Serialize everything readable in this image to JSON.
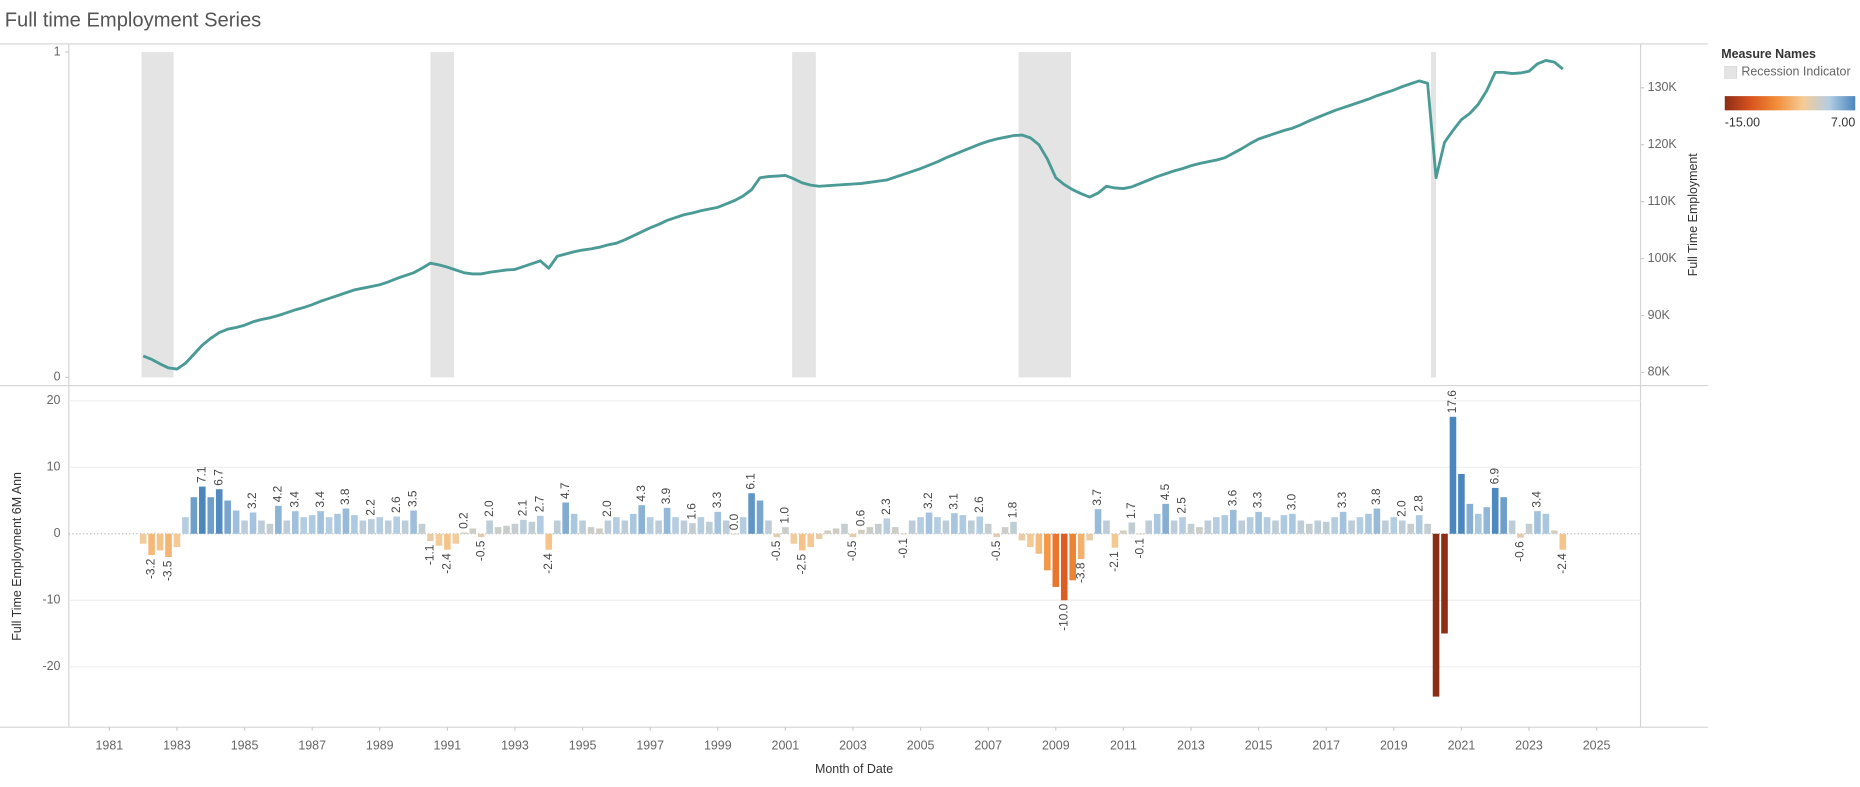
{
  "chart_data": [
    {
      "type": "line",
      "title": "Full time Employment Series",
      "y2label": "Full Time Employment",
      "legend_title": "Measure Names",
      "xlim": [
        1979.8,
        2026.3
      ],
      "ylim": [
        -0.025,
        1.025
      ],
      "yticks": [
        0,
        1
      ],
      "y2lim": [
        77.7,
        137.7
      ],
      "y2ticks": [
        {
          "value": 80,
          "label": "80K"
        },
        {
          "value": 90,
          "label": "90K"
        },
        {
          "value": 100,
          "label": "100K"
        },
        {
          "value": 110,
          "label": "110K"
        },
        {
          "value": 120,
          "label": "120K"
        },
        {
          "value": 130,
          "label": "130K"
        }
      ],
      "recessions": {
        "name": "Recession Indicator",
        "color": "#e4e4e4",
        "starts": [
          1981.95,
          1990.5,
          2001.2,
          2007.9,
          2020.1
        ],
        "ends": [
          1982.9,
          1991.2,
          2001.9,
          2009.45,
          2020.25
        ],
        "values": [
          1,
          1,
          1,
          1,
          1
        ]
      },
      "x": [
        1982,
        1982.25,
        1982.5,
        1982.75,
        1983,
        1983.25,
        1983.5,
        1983.75,
        1984,
        1984.25,
        1984.5,
        1984.75,
        1985,
        1985.25,
        1985.5,
        1985.75,
        1986,
        1986.25,
        1986.5,
        1986.75,
        1987,
        1987.25,
        1987.5,
        1987.75,
        1988,
        1988.25,
        1988.5,
        1988.75,
        1989,
        1989.25,
        1989.5,
        1989.75,
        1990,
        1990.25,
        1990.5,
        1990.75,
        1991,
        1991.25,
        1991.5,
        1991.75,
        1992,
        1992.25,
        1992.5,
        1992.75,
        1993,
        1993.25,
        1993.5,
        1993.75,
        1994,
        1994.25,
        1994.5,
        1994.75,
        1995,
        1995.25,
        1995.5,
        1995.75,
        1996,
        1996.25,
        1996.5,
        1996.75,
        1997,
        1997.25,
        1997.5,
        1997.75,
        1998,
        1998.25,
        1998.5,
        1998.75,
        1999,
        1999.25,
        1999.5,
        1999.75,
        2000,
        2000.25,
        2000.5,
        2000.75,
        2001,
        2001.25,
        2001.5,
        2001.75,
        2002,
        2002.25,
        2002.5,
        2002.75,
        2003,
        2003.25,
        2003.5,
        2003.75,
        2004,
        2004.25,
        2004.5,
        2004.75,
        2005,
        2005.25,
        2005.5,
        2005.75,
        2006,
        2006.25,
        2006.5,
        2006.75,
        2007,
        2007.25,
        2007.5,
        2007.75,
        2008,
        2008.25,
        2008.5,
        2008.75,
        2009,
        2009.25,
        2009.5,
        2009.75,
        2010,
        2010.25,
        2010.5,
        2010.75,
        2011,
        2011.25,
        2011.5,
        2011.75,
        2012,
        2012.25,
        2012.5,
        2012.75,
        2013,
        2013.25,
        2013.5,
        2013.75,
        2014,
        2014.25,
        2014.5,
        2014.75,
        2015,
        2015.25,
        2015.5,
        2015.75,
        2016,
        2016.25,
        2016.5,
        2016.75,
        2017,
        2017.25,
        2017.5,
        2017.75,
        2018,
        2018.25,
        2018.5,
        2018.75,
        2019,
        2019.25,
        2019.5,
        2019.75,
        2020,
        2020.25,
        2020.5,
        2020.75,
        2021,
        2021.25,
        2021.5,
        2021.75,
        2022,
        2022.25,
        2022.5,
        2022.75,
        2023,
        2023.25,
        2023.5,
        2023.75,
        2024
      ],
      "series": [
        {
          "axis": "y2",
          "color": "#4a9a96",
          "values": [
            82.9,
            82.3,
            81.5,
            80.8,
            80.6,
            81.6,
            83.2,
            84.8,
            86.0,
            87.0,
            87.6,
            87.9,
            88.3,
            88.9,
            89.3,
            89.6,
            90.0,
            90.5,
            91.0,
            91.4,
            91.9,
            92.5,
            93.0,
            93.5,
            94.0,
            94.5,
            94.8,
            95.1,
            95.4,
            95.9,
            96.5,
            97.0,
            97.5,
            98.3,
            99.2,
            98.9,
            98.5,
            98.0,
            97.5,
            97.3,
            97.3,
            97.6,
            97.8,
            98.0,
            98.1,
            98.6,
            99.1,
            99.6,
            98.3,
            100.4,
            100.8,
            101.2,
            101.5,
            101.7,
            102.0,
            102.4,
            102.7,
            103.3,
            104.0,
            104.7,
            105.4,
            106.0,
            106.7,
            107.2,
            107.7,
            108.0,
            108.4,
            108.7,
            109.0,
            109.6,
            110.2,
            111.0,
            112.1,
            114.2,
            114.4,
            114.5,
            114.6,
            114.0,
            113.3,
            112.9,
            112.7,
            112.8,
            112.9,
            113.0,
            113.1,
            113.2,
            113.4,
            113.6,
            113.8,
            114.3,
            114.8,
            115.3,
            115.8,
            116.4,
            117.0,
            117.7,
            118.3,
            118.9,
            119.5,
            120.1,
            120.6,
            121.0,
            121.3,
            121.6,
            121.7,
            121.2,
            120.0,
            117.5,
            114.2,
            113.0,
            112.1,
            111.4,
            110.8,
            111.5,
            112.7,
            112.4,
            112.3,
            112.6,
            113.2,
            113.8,
            114.4,
            114.9,
            115.4,
            115.8,
            116.3,
            116.7,
            117.0,
            117.3,
            117.7,
            118.5,
            119.3,
            120.2,
            121.0,
            121.5,
            122.0,
            122.5,
            122.9,
            123.5,
            124.2,
            124.8,
            125.4,
            126.0,
            126.5,
            127.0,
            127.5,
            128.0,
            128.6,
            129.1,
            129.6,
            130.2,
            130.7,
            131.2,
            130.8,
            114.2,
            120.4,
            122.5,
            124.4,
            125.5,
            127.1,
            129.5,
            132.7,
            132.7,
            132.5,
            132.6,
            132.9,
            134.2,
            134.8,
            134.5,
            133.3
          ]
        }
      ]
    },
    {
      "type": "bar",
      "xlabel": "Month of Date",
      "ylabel": "Full Time  Employment 6M Ann",
      "xlim": [
        1979.8,
        2026.3
      ],
      "xticks": [
        1981,
        1983,
        1985,
        1987,
        1989,
        1991,
        1993,
        1995,
        1997,
        1999,
        2001,
        2003,
        2005,
        2007,
        2009,
        2011,
        2013,
        2015,
        2017,
        2019,
        2021,
        2023,
        2025
      ],
      "ylim": [
        -29.1,
        22.3
      ],
      "yticks": [
        -20,
        -10,
        0,
        10,
        20
      ],
      "grid": true,
      "color_scale": {
        "min": {
          "value": -15,
          "label": "-15.00"
        },
        "max": {
          "value": 7,
          "label": "7.00"
        },
        "colors": [
          "#8c2d16",
          "#d9541e",
          "#f28e3a",
          "#f5cc97",
          "#b3cde3",
          "#4b86bd"
        ]
      },
      "x": [
        1982,
        1982.25,
        1982.5,
        1982.75,
        1983,
        1983.25,
        1983.5,
        1983.75,
        1984,
        1984.25,
        1984.5,
        1984.75,
        1985,
        1985.25,
        1985.5,
        1985.75,
        1986,
        1986.25,
        1986.5,
        1986.75,
        1987,
        1987.25,
        1987.5,
        1987.75,
        1988,
        1988.25,
        1988.5,
        1988.75,
        1989,
        1989.25,
        1989.5,
        1989.75,
        1990,
        1990.25,
        1990.5,
        1990.75,
        1991,
        1991.25,
        1991.5,
        1991.75,
        1992,
        1992.25,
        1992.5,
        1992.75,
        1993,
        1993.25,
        1993.5,
        1993.75,
        1994,
        1994.25,
        1994.5,
        1994.75,
        1995,
        1995.25,
        1995.5,
        1995.75,
        1996,
        1996.25,
        1996.5,
        1996.75,
        1997,
        1997.25,
        1997.5,
        1997.75,
        1998,
        1998.25,
        1998.5,
        1998.75,
        1999,
        1999.25,
        1999.5,
        1999.75,
        2000,
        2000.25,
        2000.5,
        2000.75,
        2001,
        2001.25,
        2001.5,
        2001.75,
        2002,
        2002.25,
        2002.5,
        2002.75,
        2003,
        2003.25,
        2003.5,
        2003.75,
        2004,
        2004.25,
        2004.5,
        2004.75,
        2005,
        2005.25,
        2005.5,
        2005.75,
        2006,
        2006.25,
        2006.5,
        2006.75,
        2007,
        2007.25,
        2007.5,
        2007.75,
        2008,
        2008.25,
        2008.5,
        2008.75,
        2009,
        2009.25,
        2009.5,
        2009.75,
        2010,
        2010.25,
        2010.5,
        2010.75,
        2011,
        2011.25,
        2011.5,
        2011.75,
        2012,
        2012.25,
        2012.5,
        2012.75,
        2013,
        2013.25,
        2013.5,
        2013.75,
        2014,
        2014.25,
        2014.5,
        2014.75,
        2015,
        2015.25,
        2015.5,
        2015.75,
        2016,
        2016.25,
        2016.5,
        2016.75,
        2017,
        2017.25,
        2017.5,
        2017.75,
        2018,
        2018.25,
        2018.5,
        2018.75,
        2019,
        2019.25,
        2019.5,
        2019.75,
        2020,
        2020.25,
        2020.5,
        2020.75,
        2021,
        2021.25,
        2021.5,
        2021.75,
        2022,
        2022.25,
        2022.5,
        2022.75,
        2023,
        2023.25,
        2023.5,
        2023.75,
        2024
      ],
      "values": [
        -1.5,
        -3.2,
        -2.5,
        -3.5,
        -2.0,
        2.5,
        5.5,
        7.1,
        5.5,
        6.7,
        5.0,
        3.5,
        2.0,
        3.2,
        2.0,
        1.5,
        4.2,
        2.0,
        3.4,
        2.5,
        2.8,
        3.4,
        2.5,
        3.0,
        3.8,
        2.8,
        2.0,
        2.2,
        2.5,
        2.0,
        2.6,
        2.0,
        3.5,
        1.5,
        -1.1,
        -1.8,
        -2.4,
        -1.5,
        0.2,
        0.8,
        -0.5,
        2.0,
        1.0,
        1.2,
        1.5,
        2.1,
        1.8,
        2.7,
        -2.4,
        2.0,
        4.7,
        3.0,
        2.0,
        1.0,
        0.8,
        2.0,
        2.5,
        2.0,
        3.0,
        4.3,
        2.5,
        2.0,
        3.9,
        2.5,
        2.0,
        1.6,
        2.5,
        1.8,
        3.3,
        2.0,
        0.0,
        2.5,
        6.1,
        5.0,
        2.0,
        -0.5,
        1.0,
        -1.5,
        -2.5,
        -2.0,
        -0.8,
        0.5,
        0.8,
        1.5,
        -0.5,
        0.6,
        1.0,
        1.5,
        2.3,
        1.0,
        -0.1,
        2.0,
        2.5,
        3.2,
        2.5,
        2.0,
        3.1,
        2.8,
        2.0,
        2.6,
        1.5,
        -0.5,
        1.0,
        1.8,
        -1.0,
        -2.0,
        -3.0,
        -5.5,
        -8.0,
        -10.0,
        -7.0,
        -3.8,
        -1.0,
        3.7,
        2.0,
        -2.1,
        0.5,
        1.7,
        -0.1,
        2.0,
        3.0,
        4.5,
        2.0,
        2.5,
        1.5,
        1.0,
        2.0,
        2.5,
        2.8,
        3.6,
        2.0,
        2.5,
        3.3,
        2.5,
        2.0,
        2.8,
        3.0,
        2.0,
        1.5,
        2.0,
        1.8,
        2.5,
        3.3,
        2.0,
        2.5,
        3.0,
        3.8,
        2.0,
        2.5,
        2.0,
        1.5,
        2.8,
        1.5,
        -24.5,
        -15.0,
        17.6,
        9.0,
        4.5,
        3.0,
        4.0,
        6.9,
        5.5,
        2.0,
        -0.6,
        1.5,
        3.4,
        3.0,
        0.5,
        -2.4
      ],
      "value_labels": [
        null,
        "-3.2",
        null,
        "-3.5",
        null,
        null,
        null,
        "7.1",
        null,
        "6.7",
        null,
        null,
        null,
        "3.2",
        null,
        null,
        "4.2",
        null,
        "3.4",
        null,
        null,
        "3.4",
        null,
        null,
        "3.8",
        null,
        null,
        "2.2",
        null,
        null,
        "2.6",
        null,
        "3.5",
        null,
        "-1.1",
        null,
        "-2.4",
        null,
        "0.2",
        null,
        "-0.5",
        "2.0",
        null,
        null,
        null,
        "2.1",
        null,
        "2.7",
        "-2.4",
        null,
        "4.7",
        null,
        null,
        null,
        null,
        "2.0",
        null,
        null,
        null,
        "4.3",
        null,
        null,
        "3.9",
        null,
        null,
        "1.6",
        null,
        null,
        "3.3",
        null,
        "0.0",
        null,
        "6.1",
        null,
        null,
        "-0.5",
        "1.0",
        null,
        "-2.5",
        null,
        null,
        null,
        null,
        null,
        "-0.5",
        "0.6",
        null,
        null,
        "2.3",
        null,
        "-0.1",
        null,
        null,
        "3.2",
        null,
        null,
        "3.1",
        null,
        null,
        "2.6",
        null,
        "-0.5",
        null,
        "1.8",
        null,
        null,
        null,
        null,
        null,
        "-10.0",
        null,
        "-3.8",
        null,
        "3.7",
        null,
        "-2.1",
        null,
        "1.7",
        "-0.1",
        null,
        null,
        "4.5",
        null,
        "2.5",
        null,
        null,
        null,
        null,
        null,
        "3.6",
        null,
        null,
        "3.3",
        null,
        null,
        null,
        "3.0",
        null,
        null,
        null,
        null,
        null,
        "3.3",
        null,
        null,
        null,
        "3.8",
        null,
        null,
        "2.0",
        null,
        "2.8",
        null,
        null,
        null,
        "17.6",
        null,
        null,
        null,
        null,
        "6.9",
        null,
        null,
        "-0.6",
        null,
        "3.4",
        null,
        null,
        "-2.4"
      ]
    }
  ]
}
